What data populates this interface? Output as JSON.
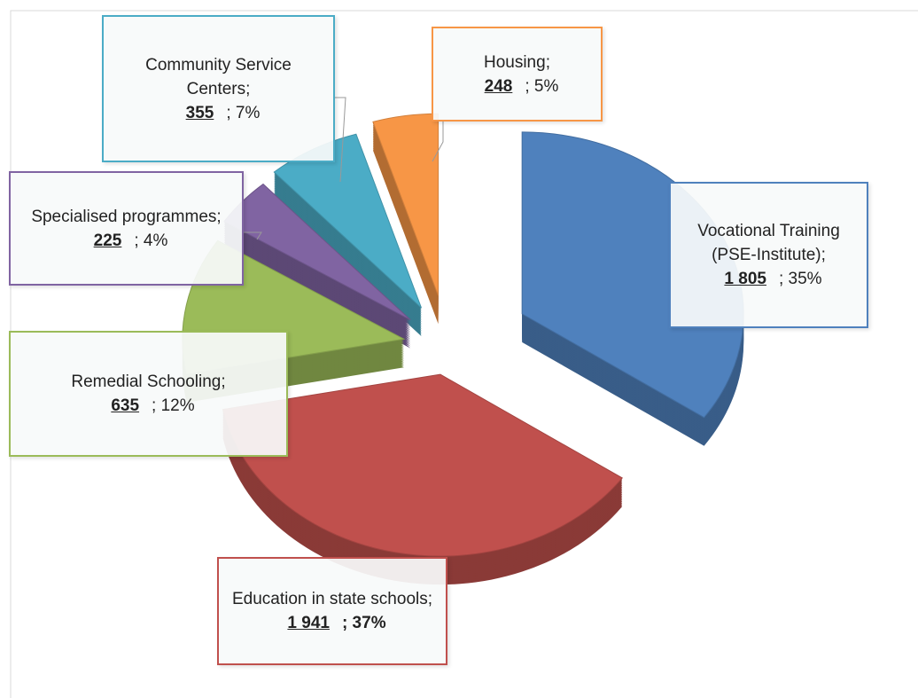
{
  "chart_data": {
    "type": "pie3d",
    "categories": [
      "Vocational Training (PSE-Institute);",
      "Education in state schools;",
      "Remedial Schooling;",
      "Specialised programmes;",
      "Community Service Centers;",
      "Housing;"
    ],
    "values": [
      1805,
      1941,
      635,
      225,
      355,
      248
    ],
    "value_labels": [
      "1 805",
      "1 941",
      "635",
      "225",
      "355",
      "248"
    ],
    "percent_labels": [
      "; 35%",
      "; 37%",
      "; 12%",
      "; 4%",
      "; 7%",
      "; 5%"
    ],
    "colors": [
      "#4f81bd",
      "#c0504d",
      "#9bbb59",
      "#8064a2",
      "#4bacc6",
      "#f79646"
    ]
  }
}
